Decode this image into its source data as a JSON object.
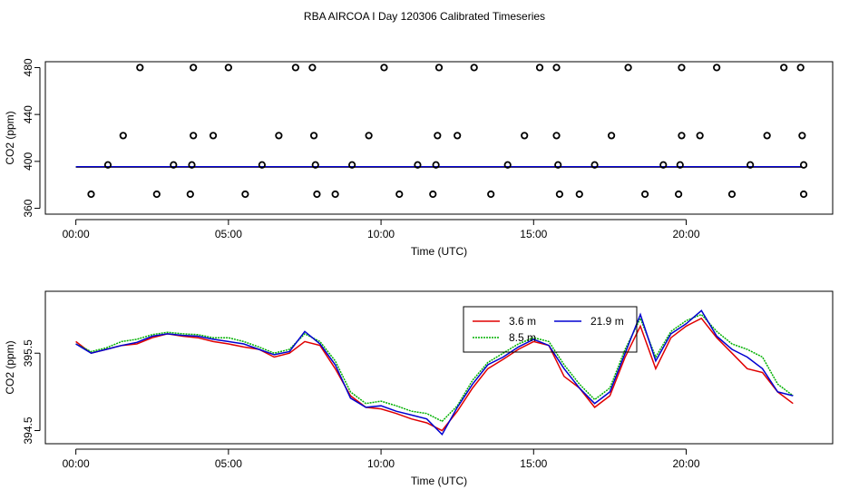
{
  "figure": {
    "title": "RBA AIRCOA I  Day 120306  Calibrated Timeseries"
  },
  "chart_data": [
    {
      "type": "scatter",
      "title": "",
      "xlabel": "Time (UTC)",
      "ylabel": "CO2 (ppm)",
      "x_unit": "hours",
      "xlim": [
        -1.0,
        24.8
      ],
      "ylim": [
        355,
        485
      ],
      "x_ticks": [
        0,
        5,
        10,
        15,
        20
      ],
      "x_tick_labels": [
        "00:00",
        "05:00",
        "10:00",
        "15:00",
        "20:00"
      ],
      "y_ticks": [
        360,
        400,
        440,
        480
      ],
      "y_tick_labels": [
        "360",
        "400",
        "440",
        "480"
      ],
      "grid": false,
      "legend": "none",
      "colors": {
        "3.6 m": "#e00000",
        "8.5 m": "#00b000",
        "21.9 m": "#0000d0",
        "calibration": "#000000"
      },
      "calibration_points": {
        "480": [
          2.1,
          3.85,
          5.0,
          7.2,
          7.75,
          10.1,
          11.9,
          13.05,
          15.2,
          15.75,
          18.1,
          19.85,
          21.0,
          23.2,
          23.75
        ],
        "422": [
          1.55,
          3.85,
          4.5,
          6.65,
          7.8,
          9.6,
          11.85,
          12.5,
          14.7,
          15.75,
          17.55,
          19.85,
          20.45,
          22.65,
          23.8
        ],
        "397": [
          1.05,
          3.2,
          3.8,
          6.1,
          7.85,
          9.05,
          11.2,
          11.8,
          14.15,
          15.8,
          17.0,
          19.25,
          19.8,
          22.1,
          23.85
        ],
        "372": [
          0.5,
          2.65,
          3.75,
          5.55,
          7.9,
          8.5,
          10.6,
          11.7,
          13.6,
          15.85,
          16.5,
          18.65,
          19.75,
          21.5,
          23.85
        ]
      },
      "baseline_value": 395.4
    },
    {
      "type": "line",
      "title": "",
      "xlabel": "Time (UTC)",
      "ylabel": "CO2 (ppm)",
      "x_unit": "hours",
      "xlim": [
        -1.0,
        24.8
      ],
      "ylim": [
        394.33,
        396.3
      ],
      "x_ticks": [
        0,
        5,
        10,
        15,
        20
      ],
      "x_tick_labels": [
        "00:00",
        "05:00",
        "10:00",
        "15:00",
        "20:00"
      ],
      "y_ticks": [
        394.5,
        395.5
      ],
      "y_tick_labels": [
        "394.5",
        "395.5"
      ],
      "grid": false,
      "legend": "top-center",
      "x": [
        0.0,
        0.5,
        1.0,
        1.5,
        2.0,
        2.5,
        3.0,
        3.5,
        4.0,
        4.5,
        5.0,
        5.5,
        6.0,
        6.5,
        7.0,
        7.5,
        8.0,
        8.5,
        9.0,
        9.5,
        10.0,
        10.5,
        11.0,
        11.5,
        12.0,
        12.5,
        13.0,
        13.5,
        14.0,
        14.5,
        15.0,
        15.5,
        16.0,
        16.5,
        17.0,
        17.5,
        18.0,
        18.5,
        19.0,
        19.5,
        20.0,
        20.5,
        21.0,
        21.5,
        22.0,
        22.5,
        23.0,
        23.5
      ],
      "series": [
        {
          "name": "3.6 m",
          "values": [
            395.65,
            395.5,
            395.55,
            395.6,
            395.62,
            395.7,
            395.75,
            395.72,
            395.7,
            395.65,
            395.62,
            395.58,
            395.55,
            395.45,
            395.5,
            395.65,
            395.6,
            395.3,
            394.95,
            394.8,
            394.78,
            394.72,
            394.65,
            394.6,
            394.5,
            394.75,
            395.05,
            395.3,
            395.42,
            395.55,
            395.65,
            395.6,
            395.2,
            395.05,
            394.8,
            394.95,
            395.45,
            395.85,
            395.3,
            395.7,
            395.85,
            395.95,
            395.7,
            395.5,
            395.3,
            395.25,
            395.0,
            394.85
          ]
        },
        {
          "name": "8.5 m",
          "values": [
            395.62,
            395.52,
            395.57,
            395.65,
            395.68,
            395.74,
            395.77,
            395.75,
            395.74,
            395.7,
            395.7,
            395.65,
            395.58,
            395.5,
            395.55,
            395.75,
            395.65,
            395.4,
            395.0,
            394.85,
            394.88,
            394.82,
            394.75,
            394.72,
            394.62,
            394.82,
            395.15,
            395.38,
            395.5,
            395.62,
            395.7,
            395.65,
            395.35,
            395.1,
            394.9,
            395.05,
            395.55,
            395.95,
            395.45,
            395.78,
            395.92,
            396.0,
            395.78,
            395.62,
            395.55,
            395.45,
            395.1,
            394.95
          ]
        },
        {
          "name": "21.9 m",
          "values": [
            395.62,
            395.5,
            395.55,
            395.6,
            395.64,
            395.72,
            395.75,
            395.73,
            395.72,
            395.68,
            395.65,
            395.62,
            395.55,
            395.48,
            395.52,
            395.78,
            395.62,
            395.35,
            394.92,
            394.8,
            394.82,
            394.75,
            394.7,
            394.65,
            394.45,
            394.8,
            395.1,
            395.35,
            395.45,
            395.58,
            395.68,
            395.6,
            395.3,
            395.05,
            394.85,
            395.0,
            395.5,
            396.0,
            395.4,
            395.75,
            395.88,
            396.05,
            395.72,
            395.55,
            395.45,
            395.3,
            395.0,
            394.95
          ]
        }
      ]
    }
  ]
}
